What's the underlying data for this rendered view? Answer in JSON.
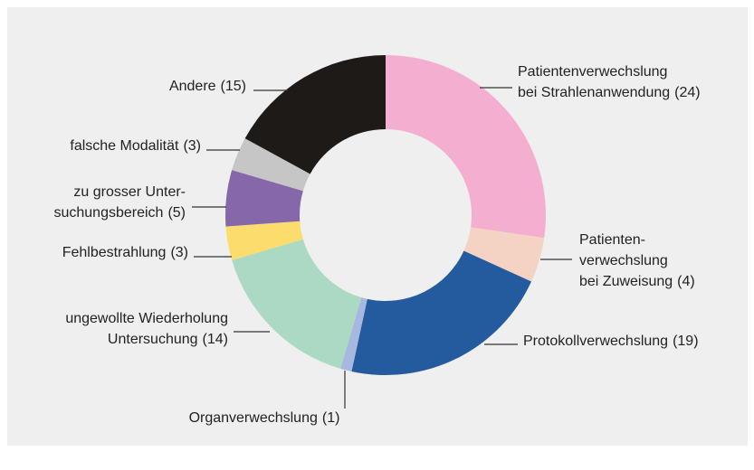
{
  "chart_data": {
    "type": "pie",
    "categories": [
      [
        "Patientenverwechslung",
        "bei Strahlenanwendung"
      ],
      [
        "Patienten-",
        "verwechslung",
        "bei Zuweisung"
      ],
      [
        "Protokollverwechslung"
      ],
      [
        "Organverwechslung"
      ],
      [
        "ungewollte Wiederholung",
        "Untersuchung"
      ],
      [
        "Fehlbestrahlung"
      ],
      [
        "zu grosser Unter-",
        "suchungsbereich"
      ],
      [
        "falsche Modalität"
      ],
      [
        "Andere"
      ]
    ],
    "values": [
      24,
      4,
      19,
      1,
      14,
      3,
      5,
      3,
      15
    ],
    "value_labels": [
      "(24)",
      "(4)",
      "(19)",
      "(1)",
      "(14)",
      "(3)",
      "(5)",
      "(3)",
      "(15)"
    ],
    "colors": [
      "#f4afd0",
      "#f5d3c4",
      "#245a9e",
      "#a6b8e0",
      "#acd9c4",
      "#fddc6e",
      "#8667a9",
      "#c6c6c6",
      "#1e1a18"
    ]
  }
}
